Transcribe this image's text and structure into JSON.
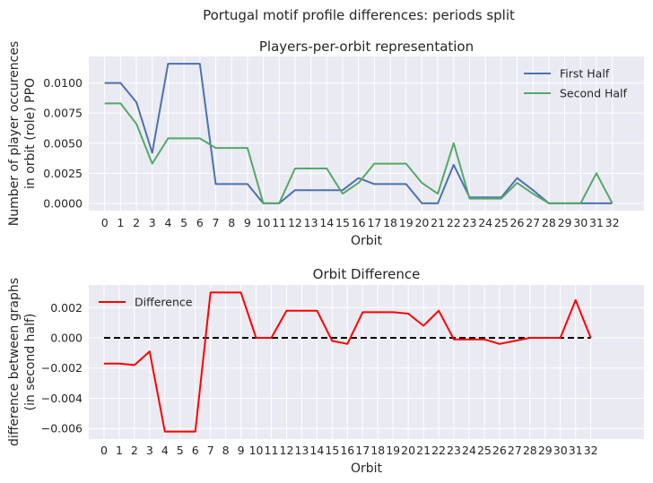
{
  "suptitle": "Portugal motif profile differences: periods split",
  "chart_data": [
    {
      "type": "line",
      "title": "Players-per-orbit representation",
      "xlabel": "Orbit",
      "ylabel_lines": [
        "Number of player occurences",
        "in orbit (role) PPO"
      ],
      "x": [
        0,
        1,
        2,
        3,
        4,
        5,
        6,
        7,
        8,
        9,
        10,
        11,
        12,
        13,
        14,
        15,
        16,
        17,
        18,
        19,
        20,
        21,
        22,
        23,
        24,
        25,
        26,
        27,
        28,
        29,
        30,
        31,
        32
      ],
      "xticks": [
        "0",
        "1",
        "2",
        "3",
        "4",
        "5",
        "6",
        "7",
        "8",
        "9",
        "10",
        "11",
        "12",
        "13",
        "14",
        "15",
        "16",
        "17",
        "18",
        "19",
        "20",
        "21",
        "22",
        "23",
        "24",
        "25",
        "26",
        "27",
        "28",
        "29",
        "30",
        "31",
        "32"
      ],
      "xlim": [
        -1.0,
        34.0
      ],
      "ylim": [
        -0.0006,
        0.0122
      ],
      "yticks": [
        "0.0000",
        "0.0025",
        "0.0050",
        "0.0075",
        "0.0100"
      ],
      "ytick_values": [
        0,
        0.0025,
        0.005,
        0.0075,
        0.01
      ],
      "grid": true,
      "legend_position": "top-right",
      "series": [
        {
          "name": "First Half",
          "color": "#4c72b0",
          "values": [
            0.01,
            0.01,
            0.0084,
            0.0042,
            0.0116,
            0.0116,
            0.0116,
            0.0016,
            0.0016,
            0.0016,
            0.0,
            0.0,
            0.0011,
            0.0011,
            0.0011,
            0.0011,
            0.0021,
            0.0016,
            0.0016,
            0.0016,
            0.0,
            0.0,
            0.0032,
            0.0005,
            0.0005,
            0.0005,
            0.0021,
            0.0011,
            0.0,
            0.0,
            0.0,
            0.0,
            0.0
          ]
        },
        {
          "name": "Second Half",
          "color": "#55a868",
          "values": [
            0.0083,
            0.0083,
            0.0066,
            0.0033,
            0.0054,
            0.0054,
            0.0054,
            0.0046,
            0.0046,
            0.0046,
            0.0,
            0.0,
            0.0029,
            0.0029,
            0.0029,
            0.0008,
            0.0017,
            0.0033,
            0.0033,
            0.0033,
            0.0017,
            0.0008,
            0.005,
            0.0004,
            0.0004,
            0.0004,
            0.0017,
            0.0008,
            0.0,
            0.0,
            0.0,
            0.0025,
            0.0
          ]
        }
      ]
    },
    {
      "type": "line",
      "title": "Orbit Difference",
      "xlabel": "Orbit",
      "ylabel_lines": [
        "difference between graphs",
        "(in second half)"
      ],
      "x": [
        0,
        1,
        2,
        3,
        4,
        5,
        6,
        7,
        8,
        9,
        10,
        11,
        12,
        13,
        14,
        15,
        16,
        17,
        18,
        19,
        20,
        21,
        22,
        23,
        24,
        25,
        26,
        27,
        28,
        29,
        30,
        31,
        32
      ],
      "xticks": [
        "0",
        "1",
        "2",
        "3",
        "4",
        "5",
        "6",
        "7",
        "8",
        "9",
        "10",
        "11",
        "12",
        "13",
        "14",
        "15",
        "16",
        "17",
        "18",
        "19",
        "20",
        "21",
        "22",
        "23",
        "24",
        "25",
        "26",
        "27",
        "28",
        "29",
        "30",
        "31",
        "32"
      ],
      "xlim": [
        -1.0,
        35.5
      ],
      "ylim": [
        -0.0067,
        0.0035
      ],
      "yticks": [
        "−0.006",
        "−0.004",
        "−0.002",
        "0.000",
        "0.002"
      ],
      "ytick_values": [
        -0.006,
        -0.004,
        -0.002,
        0,
        0.002
      ],
      "grid": true,
      "legend_position": "top-left",
      "reference_line": {
        "y": 0,
        "style": "dashed",
        "color": "#000000",
        "x_range": [
          0,
          32
        ]
      },
      "series": [
        {
          "name": "Difference",
          "color": "#ff0000",
          "values": [
            -0.0017,
            -0.0017,
            -0.0018,
            -0.0009,
            -0.0062,
            -0.0062,
            -0.0062,
            0.003,
            0.003,
            0.003,
            0.0,
            0.0,
            0.0018,
            0.0018,
            0.0018,
            -0.0002,
            -0.0004,
            0.0017,
            0.0017,
            0.0017,
            0.0016,
            0.0008,
            0.0018,
            -0.0001,
            -0.0001,
            -0.0001,
            -0.0004,
            -0.0002,
            0.0,
            0.0,
            0.0,
            0.0025,
            0.0
          ]
        }
      ]
    }
  ]
}
